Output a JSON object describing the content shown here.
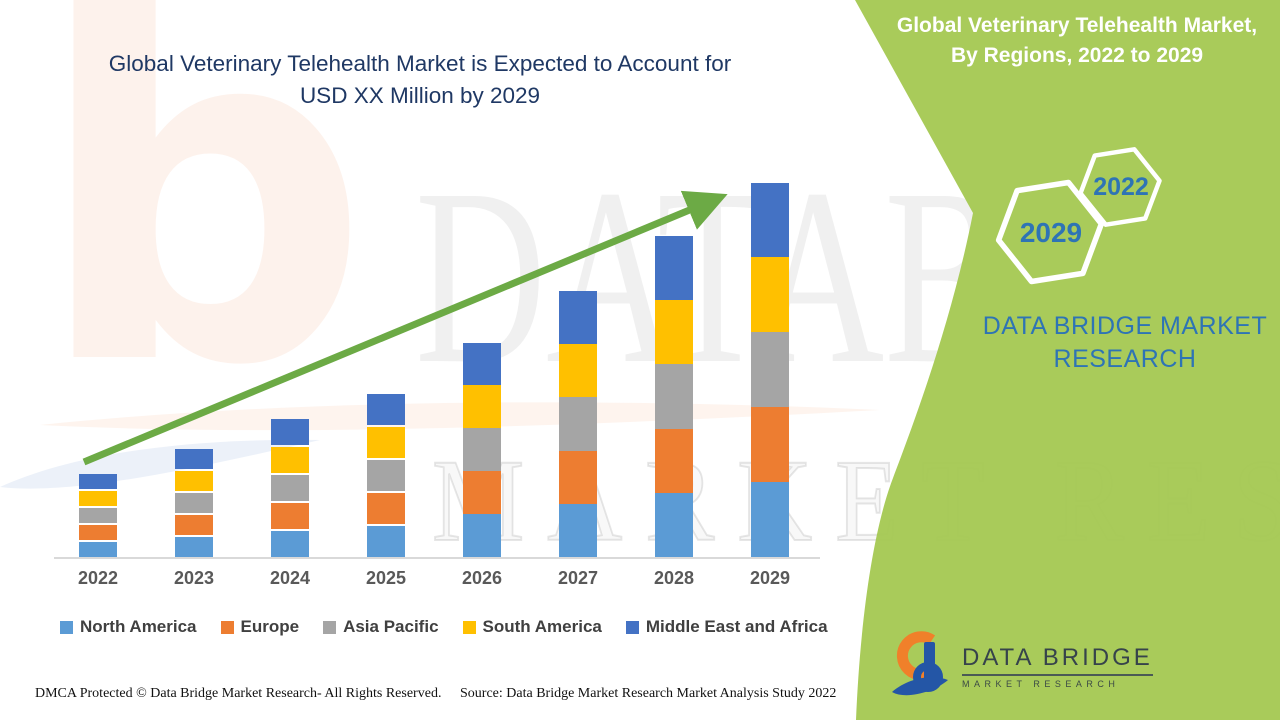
{
  "banner": {
    "main_title_line1": "Global Veterinary Telehealth Market is Expected to Account for",
    "main_title_line2": "USD XX Million by 2029",
    "side_panel": {
      "title_line1": "Global Veterinary Telehealth Market,",
      "title_line2": "By Regions, 2022 to 2029",
      "hexagon_front_year": "2029",
      "hexagon_back_year": "2022",
      "brand_line1": "DATA BRIDGE MARKET",
      "brand_line2": "RESEARCH"
    },
    "logo": {
      "name": "DATA BRIDGE",
      "subtitle": "MARKET RESEARCH"
    },
    "watermark": {
      "letter_mark": "b",
      "big_text": "DATABRIDGE",
      "sub_text": "MARKET RESEARCH"
    },
    "footer": {
      "left_text": "DMCA Protected © Data Bridge Market Research- All Rights Reserved.",
      "right_text": "Source: Data Bridge Market Research Market Analysis Study 2022"
    }
  },
  "chart_data": {
    "type": "bar",
    "stacked": true,
    "title": "Global Veterinary Telehealth Market is Expected to Account for USD XX Million by 2029",
    "xlabel": "",
    "ylabel": "",
    "note": "No y-axis shown in source; values are relative bar-segment heights (pixels) read from the figure. All five regions appear approximately equal each year.",
    "legend_position": "bottom",
    "grid": false,
    "trend_arrow": true,
    "categories": [
      "2022",
      "2023",
      "2024",
      "2025",
      "2026",
      "2027",
      "2028",
      "2029"
    ],
    "series": [
      {
        "name": "North America",
        "color": "#5b9bd5",
        "values": [
          15,
          20,
          26,
          31,
          43,
          53,
          64,
          75
        ]
      },
      {
        "name": "Europe",
        "color": "#ed7d31",
        "values": [
          15,
          20,
          26,
          31,
          43,
          53,
          64,
          75
        ]
      },
      {
        "name": "Asia Pacific",
        "color": "#a5a5a5",
        "values": [
          15,
          20,
          26,
          31,
          43,
          54,
          65,
          75
        ]
      },
      {
        "name": "South America",
        "color": "#ffc000",
        "values": [
          15,
          20,
          26,
          31,
          43,
          53,
          64,
          75
        ]
      },
      {
        "name": "Middle East and Africa",
        "color": "#4472c4",
        "values": [
          15,
          20,
          26,
          31,
          42,
          53,
          64,
          74
        ]
      }
    ]
  },
  "colors": {
    "green_panel": "#a6c953",
    "arrow_green": "#6caa45",
    "title_navy": "#1f3864",
    "brand_blue": "#2e74b5",
    "axis_gray": "#d9d9d9",
    "label_gray": "#595959",
    "legend_text": "#404040",
    "logo_dark": "#36434b"
  }
}
